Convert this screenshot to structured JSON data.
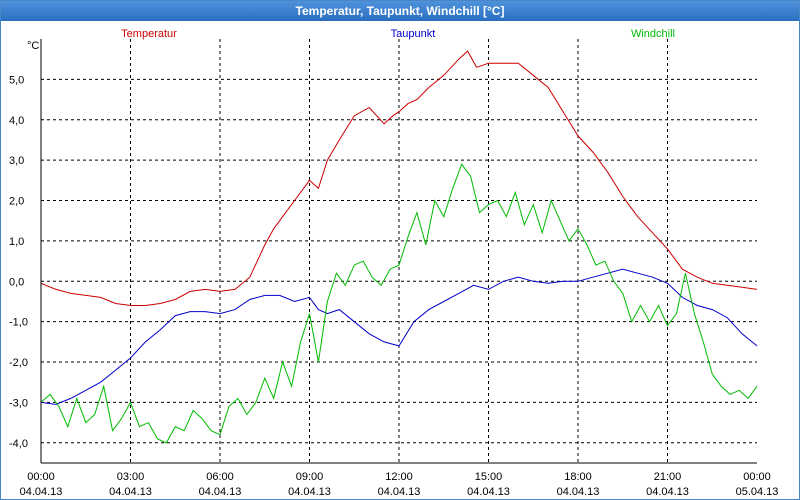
{
  "window": {
    "title": "Temperatur, Taupunkt, Windchill [°C]"
  },
  "chart_data": {
    "type": "line",
    "title": "Temperatur, Taupunkt, Windchill [°C]",
    "ylabel": "°C",
    "ylim": [
      -4.5,
      6.0
    ],
    "yticks": [
      "5,0",
      "4,0",
      "3,0",
      "2,0",
      "1,0",
      "0,0",
      "-1,0",
      "-2,0",
      "-3,0",
      "-4,0"
    ],
    "ytick_values": [
      5,
      4,
      3,
      2,
      1,
      0,
      -1,
      -2,
      -3,
      -4
    ],
    "xlim": [
      0,
      24
    ],
    "xticks": [
      {
        "time": "00:00",
        "date": "04.04.13"
      },
      {
        "time": "03:00",
        "date": "04.04.13"
      },
      {
        "time": "06:00",
        "date": "04.04.13"
      },
      {
        "time": "09:00",
        "date": "04.04.13"
      },
      {
        "time": "12:00",
        "date": "04.04.13"
      },
      {
        "time": "15:00",
        "date": "04.04.13"
      },
      {
        "time": "18:00",
        "date": "04.04.13"
      },
      {
        "time": "21:00",
        "date": "04.04.13"
      },
      {
        "time": "00:00",
        "date": "05.04.13"
      }
    ],
    "grid": true,
    "legend_position": "top",
    "series": [
      {
        "name": "Temperatur",
        "color": "#cc0000",
        "x": [
          0,
          0.5,
          1,
          1.5,
          2,
          2.5,
          3,
          3.5,
          4,
          4.5,
          5,
          5.5,
          6,
          6.5,
          7,
          7.5,
          7.8,
          8.2,
          8.6,
          9,
          9.3,
          9.6,
          10,
          10.5,
          11,
          11.5,
          11.8,
          12,
          12.3,
          12.6,
          13,
          13.5,
          14,
          14.3,
          14.6,
          15,
          15.3,
          16,
          16.5,
          17,
          17.5,
          18,
          18.5,
          19,
          19.5,
          20,
          20.5,
          21,
          21.5,
          22,
          22.5,
          23,
          23.5,
          24
        ],
        "values": [
          -0.05,
          -0.2,
          -0.3,
          -0.35,
          -0.4,
          -0.55,
          -0.6,
          -0.6,
          -0.55,
          -0.45,
          -0.25,
          -0.2,
          -0.25,
          -0.2,
          0.1,
          0.9,
          1.3,
          1.7,
          2.1,
          2.5,
          2.3,
          3.0,
          3.5,
          4.1,
          4.3,
          3.9,
          4.1,
          4.2,
          4.4,
          4.5,
          4.8,
          5.1,
          5.5,
          5.7,
          5.3,
          5.4,
          5.4,
          5.4,
          5.1,
          4.8,
          4.2,
          3.6,
          3.2,
          2.7,
          2.1,
          1.6,
          1.2,
          0.8,
          0.3,
          0.1,
          -0.05,
          -0.1,
          -0.15,
          -0.2
        ]
      },
      {
        "name": "Taupunkt",
        "color": "#0000cc",
        "x": [
          0,
          0.5,
          1,
          1.5,
          2,
          2.5,
          3,
          3.5,
          4,
          4.5,
          5,
          5.5,
          6,
          6.5,
          7,
          7.5,
          8,
          8.5,
          9,
          9.3,
          9.6,
          10,
          10.5,
          11,
          11.5,
          12,
          12.5,
          13,
          13.5,
          14,
          14.5,
          15,
          15.5,
          16,
          16.5,
          17,
          17.5,
          18,
          18.5,
          19,
          19.5,
          20,
          20.5,
          21,
          21.5,
          22,
          22.5,
          23,
          23.5,
          24
        ],
        "values": [
          -3.0,
          -3.05,
          -2.9,
          -2.7,
          -2.5,
          -2.2,
          -1.9,
          -1.5,
          -1.2,
          -0.85,
          -0.75,
          -0.75,
          -0.8,
          -0.7,
          -0.45,
          -0.35,
          -0.35,
          -0.5,
          -0.4,
          -0.7,
          -0.8,
          -0.7,
          -1.0,
          -1.3,
          -1.5,
          -1.6,
          -1.0,
          -0.7,
          -0.5,
          -0.3,
          -0.1,
          -0.2,
          0.0,
          0.1,
          0.0,
          -0.05,
          0.0,
          0.0,
          0.1,
          0.2,
          0.3,
          0.2,
          0.1,
          -0.05,
          -0.4,
          -0.6,
          -0.7,
          -0.9,
          -1.3,
          -1.6
        ]
      },
      {
        "name": "Windchill",
        "color": "#00bb00",
        "x": [
          0,
          0.3,
          0.6,
          0.9,
          1.2,
          1.5,
          1.8,
          2.1,
          2.4,
          2.7,
          3,
          3.3,
          3.6,
          3.9,
          4.2,
          4.5,
          4.8,
          5.1,
          5.4,
          5.7,
          6,
          6.3,
          6.6,
          6.9,
          7.2,
          7.5,
          7.8,
          8.1,
          8.4,
          8.7,
          9,
          9.3,
          9.6,
          9.9,
          10.2,
          10.5,
          10.8,
          11.1,
          11.4,
          11.7,
          12,
          12.3,
          12.6,
          12.9,
          13.2,
          13.5,
          13.8,
          14.1,
          14.4,
          14.7,
          15,
          15.3,
          15.6,
          15.9,
          16.2,
          16.5,
          16.8,
          17.1,
          17.4,
          17.7,
          18,
          18.3,
          18.6,
          18.9,
          19.2,
          19.5,
          19.8,
          20.1,
          20.4,
          20.7,
          21,
          21.3,
          21.6,
          21.9,
          22.2,
          22.5,
          22.8,
          23.1,
          23.4,
          23.7,
          24
        ],
        "values": [
          -3.0,
          -2.8,
          -3.1,
          -3.6,
          -2.9,
          -3.5,
          -3.3,
          -2.6,
          -3.7,
          -3.4,
          -3.0,
          -3.6,
          -3.5,
          -3.9,
          -4.0,
          -3.6,
          -3.7,
          -3.2,
          -3.4,
          -3.7,
          -3.8,
          -3.1,
          -2.9,
          -3.3,
          -3.0,
          -2.4,
          -2.9,
          -2.0,
          -2.6,
          -1.5,
          -0.8,
          -2.0,
          -0.5,
          0.2,
          -0.1,
          0.4,
          0.5,
          0.1,
          -0.1,
          0.3,
          0.4,
          1.1,
          1.7,
          0.9,
          2.0,
          1.6,
          2.3,
          2.9,
          2.6,
          1.7,
          1.9,
          2.0,
          1.6,
          2.2,
          1.4,
          1.9,
          1.2,
          2.0,
          1.5,
          1.0,
          1.3,
          0.9,
          0.4,
          0.5,
          0.0,
          -0.3,
          -1.0,
          -0.6,
          -1.0,
          -0.6,
          -1.1,
          -0.8,
          0.2,
          -0.8,
          -1.5,
          -2.3,
          -2.6,
          -2.8,
          -2.7,
          -2.9,
          -2.6
        ]
      }
    ]
  }
}
